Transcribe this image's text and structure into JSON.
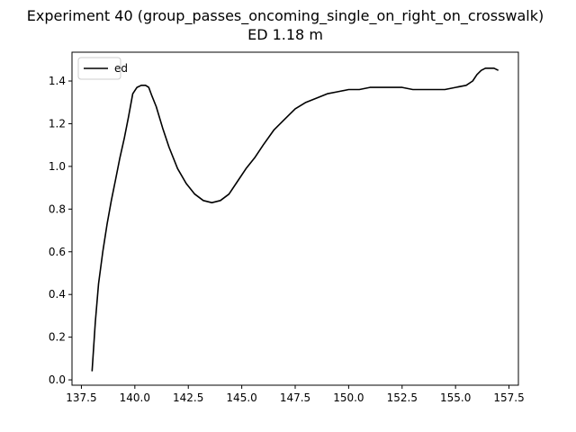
{
  "chart_data": {
    "type": "line",
    "title": "Experiment 40 (group_passes_oncoming_single_on_right_on_crosswalk)",
    "subtitle": "ED 1.18 m",
    "xlabel": "",
    "ylabel": "",
    "xlim": [
      137.06,
      157.94
    ],
    "ylim": [
      -0.025,
      1.535
    ],
    "x_ticks": [
      137.5,
      140.0,
      142.5,
      145.0,
      147.5,
      150.0,
      152.5,
      155.0,
      157.5
    ],
    "x_tick_labels": [
      "137.5",
      "140.0",
      "142.5",
      "145.0",
      "147.5",
      "150.0",
      "152.5",
      "155.0",
      "157.5"
    ],
    "y_ticks": [
      0.0,
      0.2,
      0.4,
      0.6,
      0.8,
      1.0,
      1.2,
      1.4
    ],
    "y_tick_labels": [
      "0.0",
      "0.2",
      "0.4",
      "0.6",
      "0.8",
      "1.0",
      "1.2",
      "1.4"
    ],
    "grid": false,
    "legend": "top-left",
    "series": [
      {
        "name": "ed",
        "color": "#000000",
        "x": [
          138.0,
          138.15,
          138.3,
          138.5,
          138.7,
          138.9,
          139.1,
          139.3,
          139.5,
          139.7,
          139.9,
          140.1,
          140.3,
          140.5,
          140.65,
          140.8,
          141.0,
          141.3,
          141.6,
          142.0,
          142.4,
          142.8,
          143.2,
          143.6,
          144.0,
          144.4,
          144.8,
          145.2,
          145.6,
          146.0,
          146.5,
          147.0,
          147.5,
          148.0,
          148.5,
          149.0,
          149.5,
          150.0,
          150.5,
          151.0,
          151.5,
          152.0,
          152.5,
          153.0,
          153.5,
          154.0,
          154.5,
          155.0,
          155.5,
          155.8,
          156.0,
          156.2,
          156.4,
          156.6,
          156.8,
          157.0
        ],
        "y": [
          0.04,
          0.27,
          0.45,
          0.6,
          0.73,
          0.84,
          0.94,
          1.04,
          1.13,
          1.23,
          1.34,
          1.37,
          1.38,
          1.38,
          1.37,
          1.33,
          1.28,
          1.18,
          1.09,
          0.99,
          0.92,
          0.87,
          0.84,
          0.83,
          0.84,
          0.87,
          0.93,
          0.99,
          1.04,
          1.1,
          1.17,
          1.22,
          1.27,
          1.3,
          1.32,
          1.34,
          1.35,
          1.36,
          1.36,
          1.37,
          1.37,
          1.37,
          1.37,
          1.36,
          1.36,
          1.36,
          1.36,
          1.37,
          1.38,
          1.4,
          1.43,
          1.45,
          1.46,
          1.46,
          1.46,
          1.45
        ]
      }
    ]
  }
}
